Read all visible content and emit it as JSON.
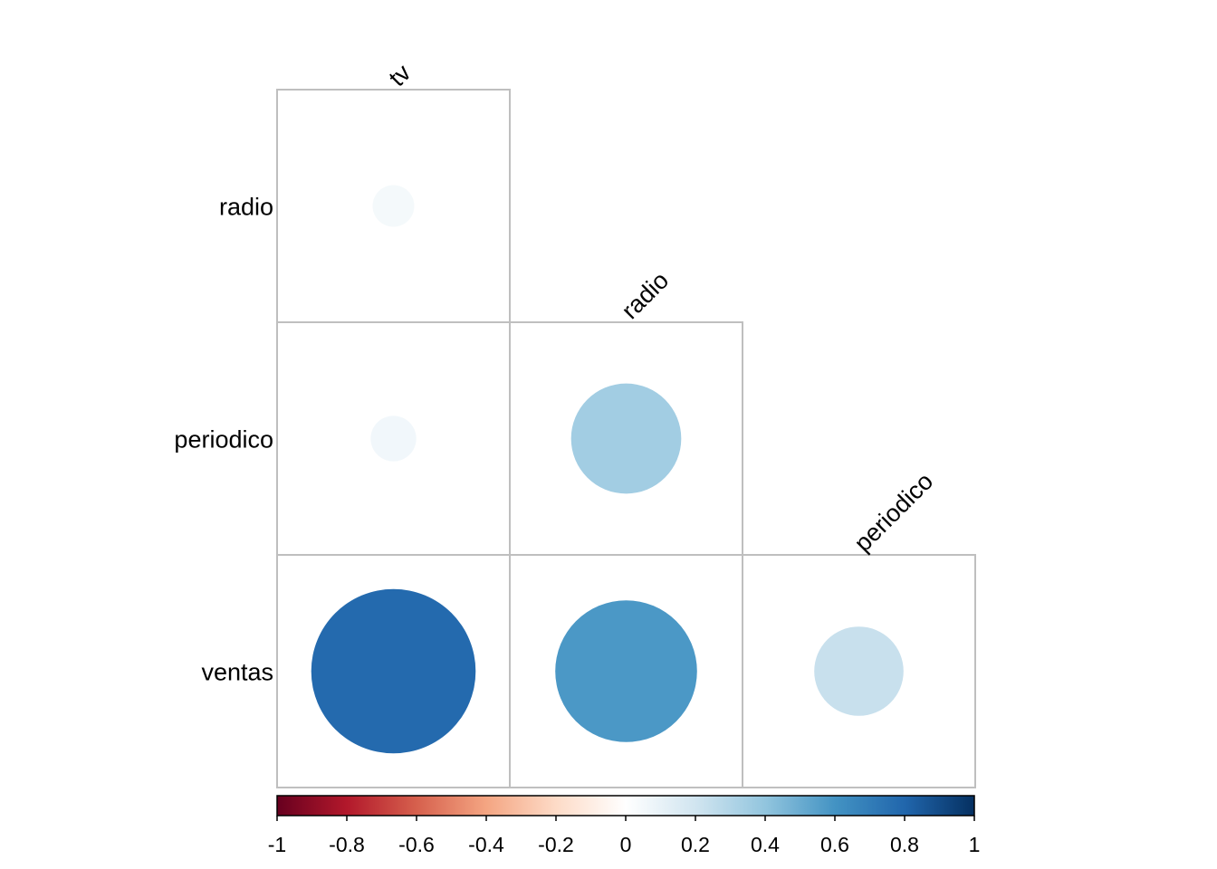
{
  "chart_data": {
    "type": "heatmap",
    "style": "corrplot-circle-lower",
    "variables": [
      "tv",
      "radio",
      "periodico",
      "ventas"
    ],
    "column_labels": [
      "tv",
      "radio",
      "periodico"
    ],
    "row_labels": [
      "radio",
      "periodico",
      "ventas"
    ],
    "cells": [
      {
        "row": "radio",
        "col": "tv",
        "value": 0.05
      },
      {
        "row": "periodico",
        "col": "tv",
        "value": 0.06
      },
      {
        "row": "periodico",
        "col": "radio",
        "value": 0.35
      },
      {
        "row": "ventas",
        "col": "tv",
        "value": 0.78
      },
      {
        "row": "ventas",
        "col": "radio",
        "value": 0.58
      },
      {
        "row": "ventas",
        "col": "periodico",
        "value": 0.23
      }
    ],
    "colorbar": {
      "range": [
        -1,
        1
      ],
      "ticks": [
        "-1",
        "-0.8",
        "-0.6",
        "-0.4",
        "-0.2",
        "0",
        "0.2",
        "0.4",
        "0.6",
        "0.8",
        "1"
      ],
      "placement": "bottom"
    },
    "colors": {
      "scale": [
        "#67001F",
        "#B2182B",
        "#D6604D",
        "#F4A582",
        "#FDDBC7",
        "#FFFFFF",
        "#D1E5F0",
        "#92C5DE",
        "#4393C3",
        "#2166AC",
        "#053061"
      ],
      "grid": "#bfbfbf"
    },
    "title": "",
    "grid": true
  }
}
